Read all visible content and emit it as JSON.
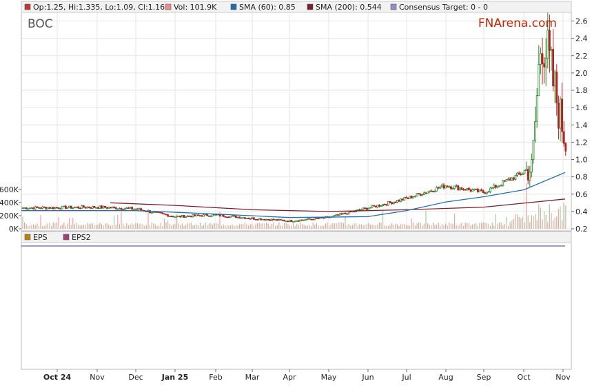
{
  "ticker": "BOC",
  "brand": "FNArena.com",
  "legend": [
    {
      "label": "Op:1.25, Hi:1.335, Lo:1.09, Cl:1.16",
      "color": "#c0392b"
    },
    {
      "label": "Vol: 101.9K",
      "color": "#f08c8c"
    },
    {
      "label": "SMA (60): 0.85",
      "color": "#1f6fb5"
    },
    {
      "label": "SMA (200): 0.544",
      "color": "#7a1f2b"
    },
    {
      "label": "Consensus Target: 0 - 0",
      "color": "#9090c8"
    }
  ],
  "eps_legend": [
    {
      "label": "EPS",
      "color": "#b8860b"
    },
    {
      "label": "EPS2",
      "color": "#a0407a"
    }
  ],
  "chart_data": {
    "type": "candlestick",
    "price_axis": {
      "ticks": [
        "0.2",
        "0.4",
        "0.6",
        "0.8",
        "1.0",
        "1.2",
        "1.4",
        "1.6",
        "1.8",
        "2.0",
        "2.2",
        "2.4",
        "2.6"
      ],
      "range": [
        0.2,
        2.7
      ]
    },
    "volume_axis": {
      "ticks": [
        "0K",
        "200K",
        "400K",
        "600K"
      ],
      "range": [
        0,
        650000
      ]
    },
    "x_axis": {
      "ticks": [
        "Oct 24",
        "Nov",
        "Dec",
        "Jan 25",
        "Feb",
        "Mar",
        "Apr",
        "May",
        "Jun",
        "Jul",
        "Aug",
        "Sep",
        "Oct",
        "Nov"
      ]
    },
    "price_path": [
      [
        "Oct 24",
        0.44
      ],
      [
        "Nov",
        0.45
      ],
      [
        "Dec",
        0.43
      ],
      [
        "Jan 25",
        0.34
      ],
      [
        "Feb",
        0.36
      ],
      [
        "Mar",
        0.32
      ],
      [
        "Apr",
        0.29
      ],
      [
        "May",
        0.33
      ],
      [
        "Jun",
        0.44
      ],
      [
        "Jul",
        0.55
      ],
      [
        "Aug",
        0.7
      ],
      [
        "Sep",
        0.62
      ],
      [
        "Oct",
        0.9
      ],
      [
        "Oct",
        2.5
      ],
      [
        "Nov",
        1.16
      ]
    ],
    "sma60": [
      [
        "Oct 24",
        0.41
      ],
      [
        "Dec",
        0.41
      ],
      [
        "Feb",
        0.37
      ],
      [
        "Apr",
        0.33
      ],
      [
        "Jun",
        0.34
      ],
      [
        "Jul",
        0.41
      ],
      [
        "Aug",
        0.51
      ],
      [
        "Sep",
        0.57
      ],
      [
        "Oct",
        0.65
      ],
      [
        "Nov",
        0.85
      ]
    ],
    "sma200": [
      [
        "Nov",
        0.5
      ],
      [
        "Jan 25",
        0.47
      ],
      [
        "Mar",
        0.42
      ],
      [
        "May",
        0.4
      ],
      [
        "Jul",
        0.42
      ],
      [
        "Sep",
        0.45
      ],
      [
        "Nov",
        0.544
      ]
    ],
    "last": {
      "open": 1.25,
      "high": 1.335,
      "low": 1.09,
      "close": 1.16,
      "volume": 101900
    },
    "sma60_last": 0.85,
    "sma200_last": 0.544
  }
}
